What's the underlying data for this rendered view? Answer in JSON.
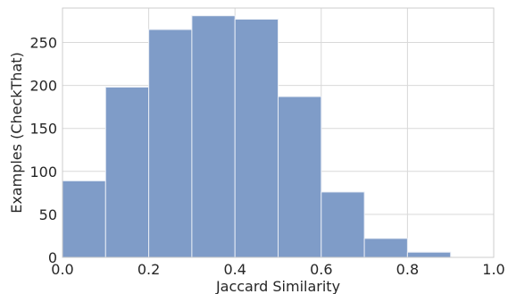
{
  "chart_data": {
    "type": "bar",
    "xlabel": "Jaccard Similarity",
    "ylabel": "Examples (CheckThat)",
    "xlim": [
      0.0,
      1.0
    ],
    "ylim": [
      0,
      290
    ],
    "x_ticks": [
      "0.0",
      "0.2",
      "0.4",
      "0.6",
      "0.8",
      "1.0"
    ],
    "x_tick_values": [
      0.0,
      0.2,
      0.4,
      0.6,
      0.8,
      1.0
    ],
    "y_ticks": [
      "0",
      "50",
      "100",
      "150",
      "200",
      "250"
    ],
    "y_tick_values": [
      0,
      50,
      100,
      150,
      200,
      250
    ],
    "bins": [
      {
        "start": 0.0,
        "end": 0.1,
        "value": 89
      },
      {
        "start": 0.1,
        "end": 0.2,
        "value": 198
      },
      {
        "start": 0.2,
        "end": 0.3,
        "value": 265
      },
      {
        "start": 0.3,
        "end": 0.4,
        "value": 281
      },
      {
        "start": 0.4,
        "end": 0.5,
        "value": 277
      },
      {
        "start": 0.5,
        "end": 0.6,
        "value": 187
      },
      {
        "start": 0.6,
        "end": 0.7,
        "value": 76
      },
      {
        "start": 0.7,
        "end": 0.8,
        "value": 22
      },
      {
        "start": 0.8,
        "end": 0.9,
        "value": 6
      },
      {
        "start": 0.9,
        "end": 1.0,
        "value": 0
      }
    ],
    "grid": true,
    "bar_color": "#7f9cc8",
    "bar_edge_color": "#e8edf5",
    "grid_color": "#d9d9d9",
    "spine_color": "#cccccc"
  }
}
